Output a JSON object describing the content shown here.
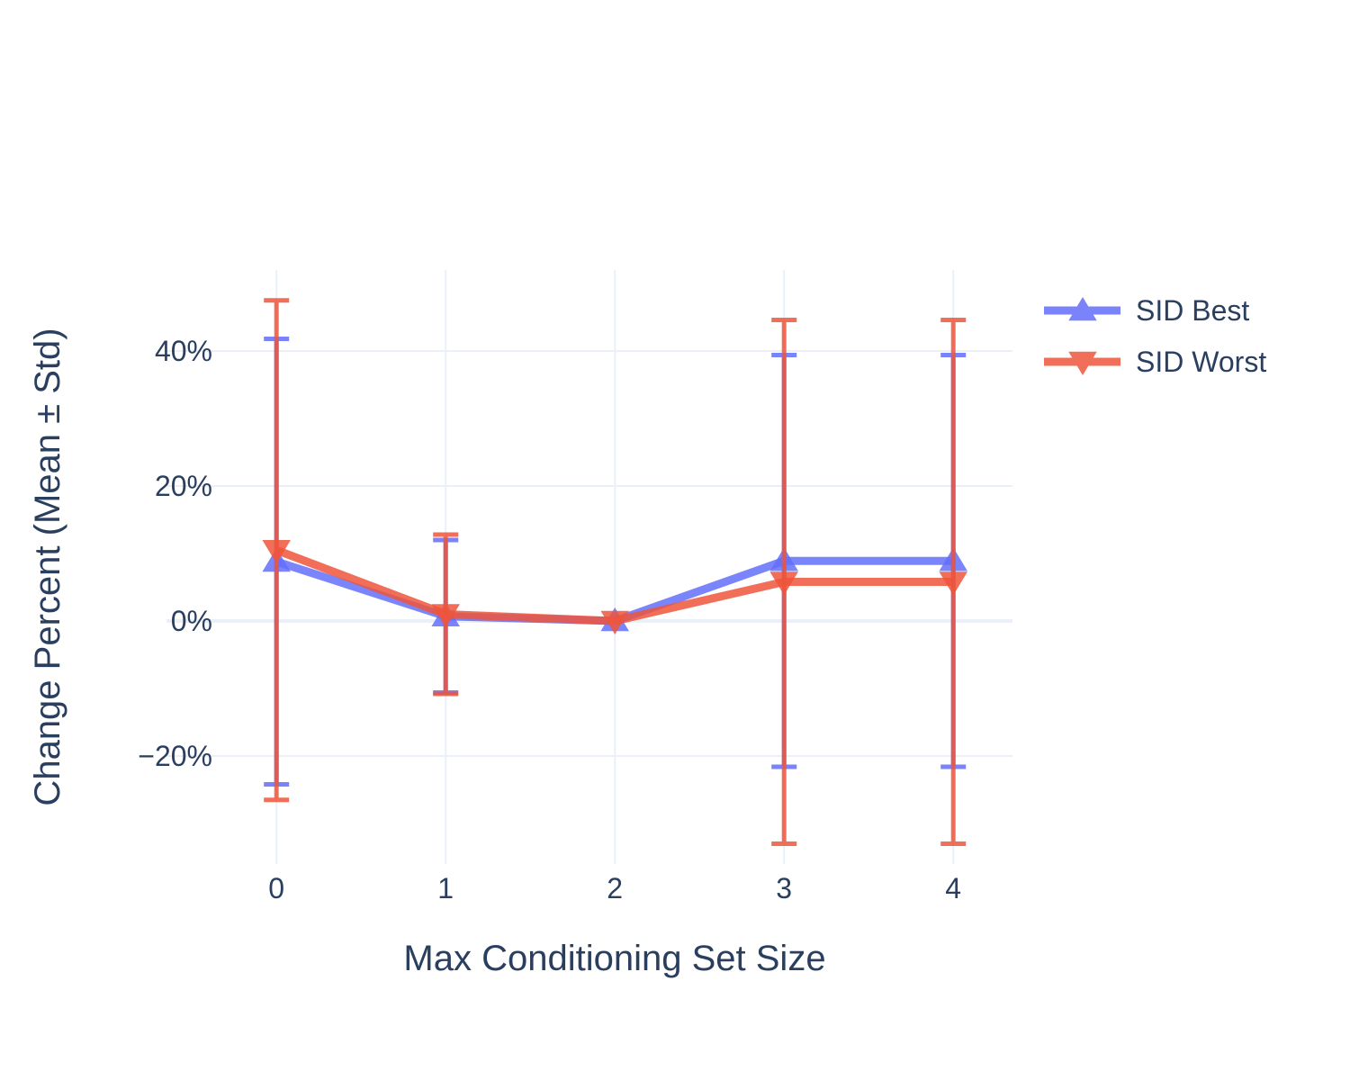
{
  "chart_data": {
    "type": "line",
    "xlabel": "Max Conditioning Set Size",
    "ylabel": "Change Percent (Mean ± Std)",
    "x": [
      0,
      1,
      2,
      3,
      4
    ],
    "x_tick_labels": [
      "0",
      "1",
      "2",
      "3",
      "4"
    ],
    "y_ticks": [
      -20,
      0,
      20,
      40
    ],
    "y_tick_labels": [
      "−20%",
      "0%",
      "20%",
      "40%"
    ],
    "xlim": [
      -0.65,
      4.35
    ],
    "ylim": [
      -36,
      52
    ],
    "grid": true,
    "legend_position": "top-right",
    "series": [
      {
        "name": "SID Best",
        "color": "#636efa",
        "marker": "triangle-up",
        "values": [
          8.8,
          0.7,
          0,
          8.9,
          8.9
        ],
        "error": [
          33,
          11.3,
          0,
          30.5,
          30.5
        ]
      },
      {
        "name": "SID Worst",
        "color": "#ef553b",
        "marker": "triangle-down",
        "values": [
          10.5,
          1.0,
          0,
          5.8,
          5.8
        ],
        "error": [
          37,
          11.8,
          0,
          38.8,
          38.8
        ]
      }
    ]
  }
}
